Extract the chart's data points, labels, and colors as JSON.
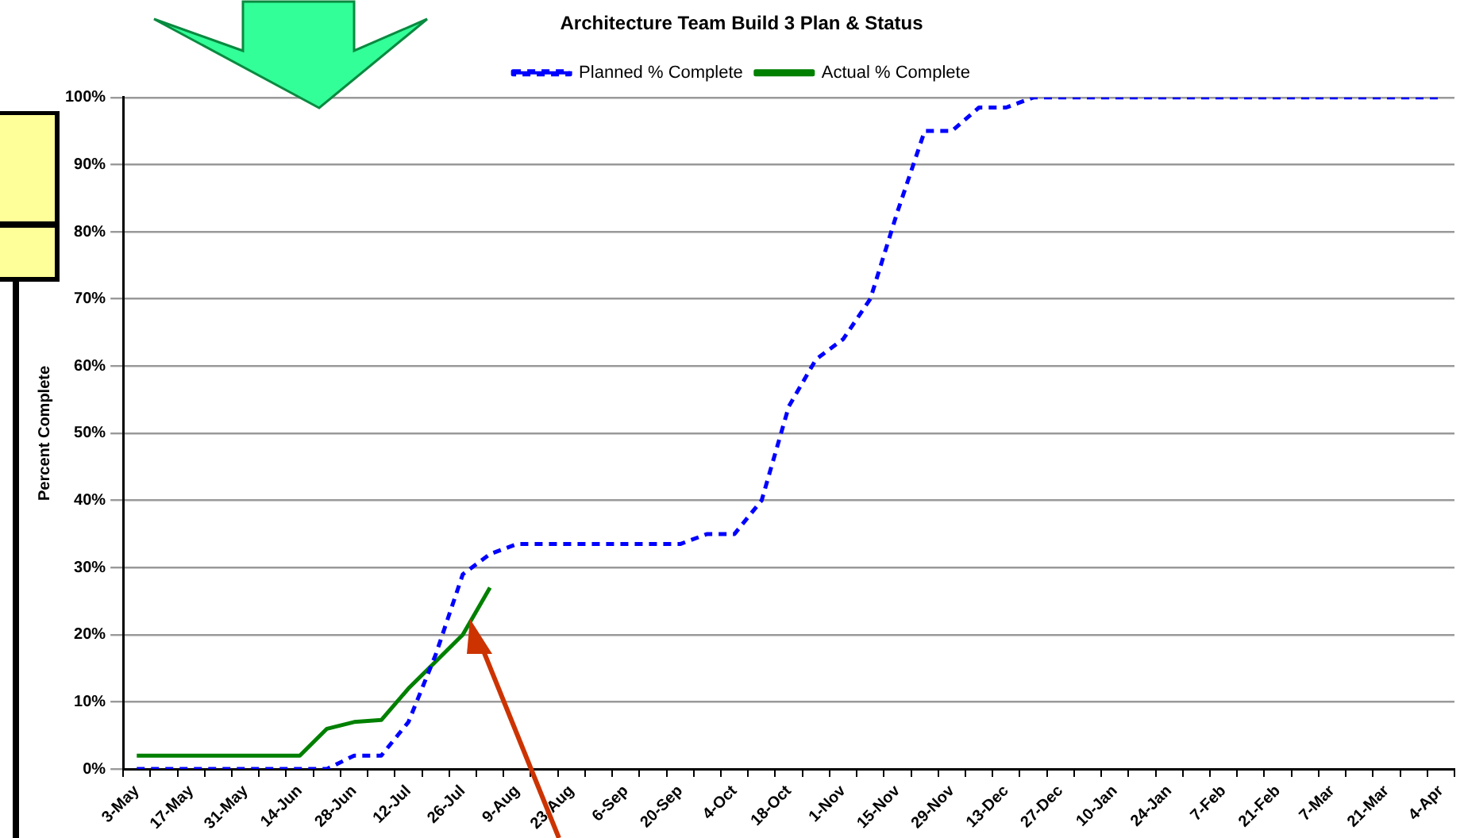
{
  "chart_data": {
    "type": "line",
    "title": "Architecture Team Build 3 Plan & Status",
    "ylabel": "Percent Complete",
    "categories": [
      "3-May",
      null,
      "17-May",
      null,
      "31-May",
      null,
      "14-Jun",
      null,
      "28-Jun",
      null,
      "12-Jul",
      null,
      "26-Jul",
      null,
      "9-Aug",
      null,
      "23-Aug",
      null,
      "6-Sep",
      null,
      "20-Sep",
      null,
      "4-Oct",
      null,
      "18-Oct",
      null,
      "1-Nov",
      null,
      "15-Nov",
      null,
      "29-Nov",
      null,
      "13-Dec",
      null,
      "27-Dec",
      null,
      "10-Jan",
      null,
      "24-Jan",
      null,
      "7-Feb",
      null,
      "21-Feb",
      null,
      "7-Mar",
      null,
      "21-Mar",
      null,
      "4-Apr"
    ],
    "series": [
      {
        "name": "Planned % Complete",
        "color": "#0000ff",
        "line_style": "dashed",
        "values": [
          0,
          0,
          0,
          0,
          0,
          0,
          0,
          0,
          2,
          2,
          7,
          17,
          29,
          32,
          33.5,
          33.5,
          33.5,
          33.5,
          33.5,
          33.5,
          33.5,
          35,
          35,
          40,
          54,
          61,
          64,
          70,
          83,
          95,
          95,
          98.5,
          98.5,
          100,
          100,
          100,
          100,
          100,
          100,
          100,
          100,
          100,
          100,
          100,
          100,
          100,
          100,
          100,
          100
        ]
      },
      {
        "name": "Actual % Complete",
        "color": "#008000",
        "line_style": "solid",
        "values": [
          2,
          2,
          2,
          2,
          2,
          2,
          2,
          6,
          7,
          7.3,
          12,
          16,
          20,
          27,
          null,
          null,
          null,
          null,
          null,
          null,
          null,
          null,
          null,
          null,
          null,
          null,
          null,
          null,
          null,
          null,
          null,
          null,
          null,
          null,
          null,
          null,
          null,
          null,
          null,
          null,
          null,
          null,
          null,
          null,
          null,
          null,
          null,
          null,
          null
        ]
      }
    ],
    "ylim": [
      0,
      100
    ],
    "yticks": [
      {
        "value": 0,
        "label": "0%"
      },
      {
        "value": 10,
        "label": "10%"
      },
      {
        "value": 20,
        "label": "20%"
      },
      {
        "value": 30,
        "label": "30%"
      },
      {
        "value": 40,
        "label": "40%"
      },
      {
        "value": 50,
        "label": "50%"
      },
      {
        "value": 60,
        "label": "60%"
      },
      {
        "value": 70,
        "label": "70%"
      },
      {
        "value": 80,
        "label": "80%"
      },
      {
        "value": 90,
        "label": "90%"
      },
      {
        "value": 100,
        "label": "100%"
      }
    ],
    "grid": "y",
    "legend": "top",
    "marker": "none"
  }
}
